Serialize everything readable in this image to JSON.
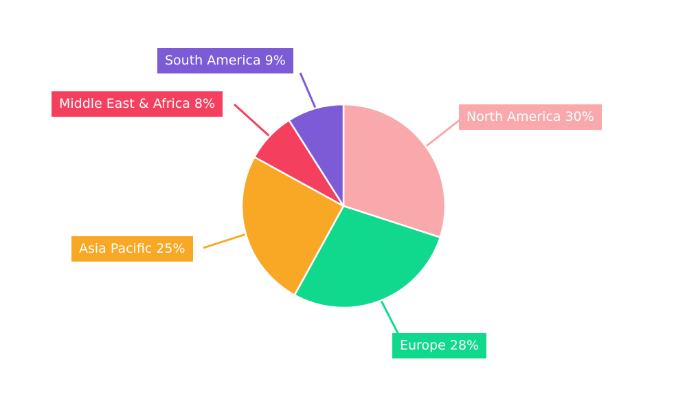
{
  "chart_data": {
    "type": "pie",
    "title": "",
    "labels": [
      "North America",
      "Europe",
      "Asia Pacific",
      "Middle East & Africa",
      "South America"
    ],
    "values": [
      30,
      28,
      25,
      8,
      9
    ],
    "unit": "%",
    "colors": [
      "#F9A8AB",
      "#10D98E",
      "#F9A825",
      "#F43F5E",
      "#7D5BD6"
    ],
    "label_texts": [
      "North America 30%",
      "Europe 28%",
      "Asia Pacific 25%",
      "Middle East & Africa 8%",
      "South America 9%"
    ],
    "label_text_color": "#FFFFFF",
    "start_angle_deg": 0,
    "direction": "clockwise",
    "legend_position": "callout-labels",
    "background": "#FFFFFF"
  }
}
